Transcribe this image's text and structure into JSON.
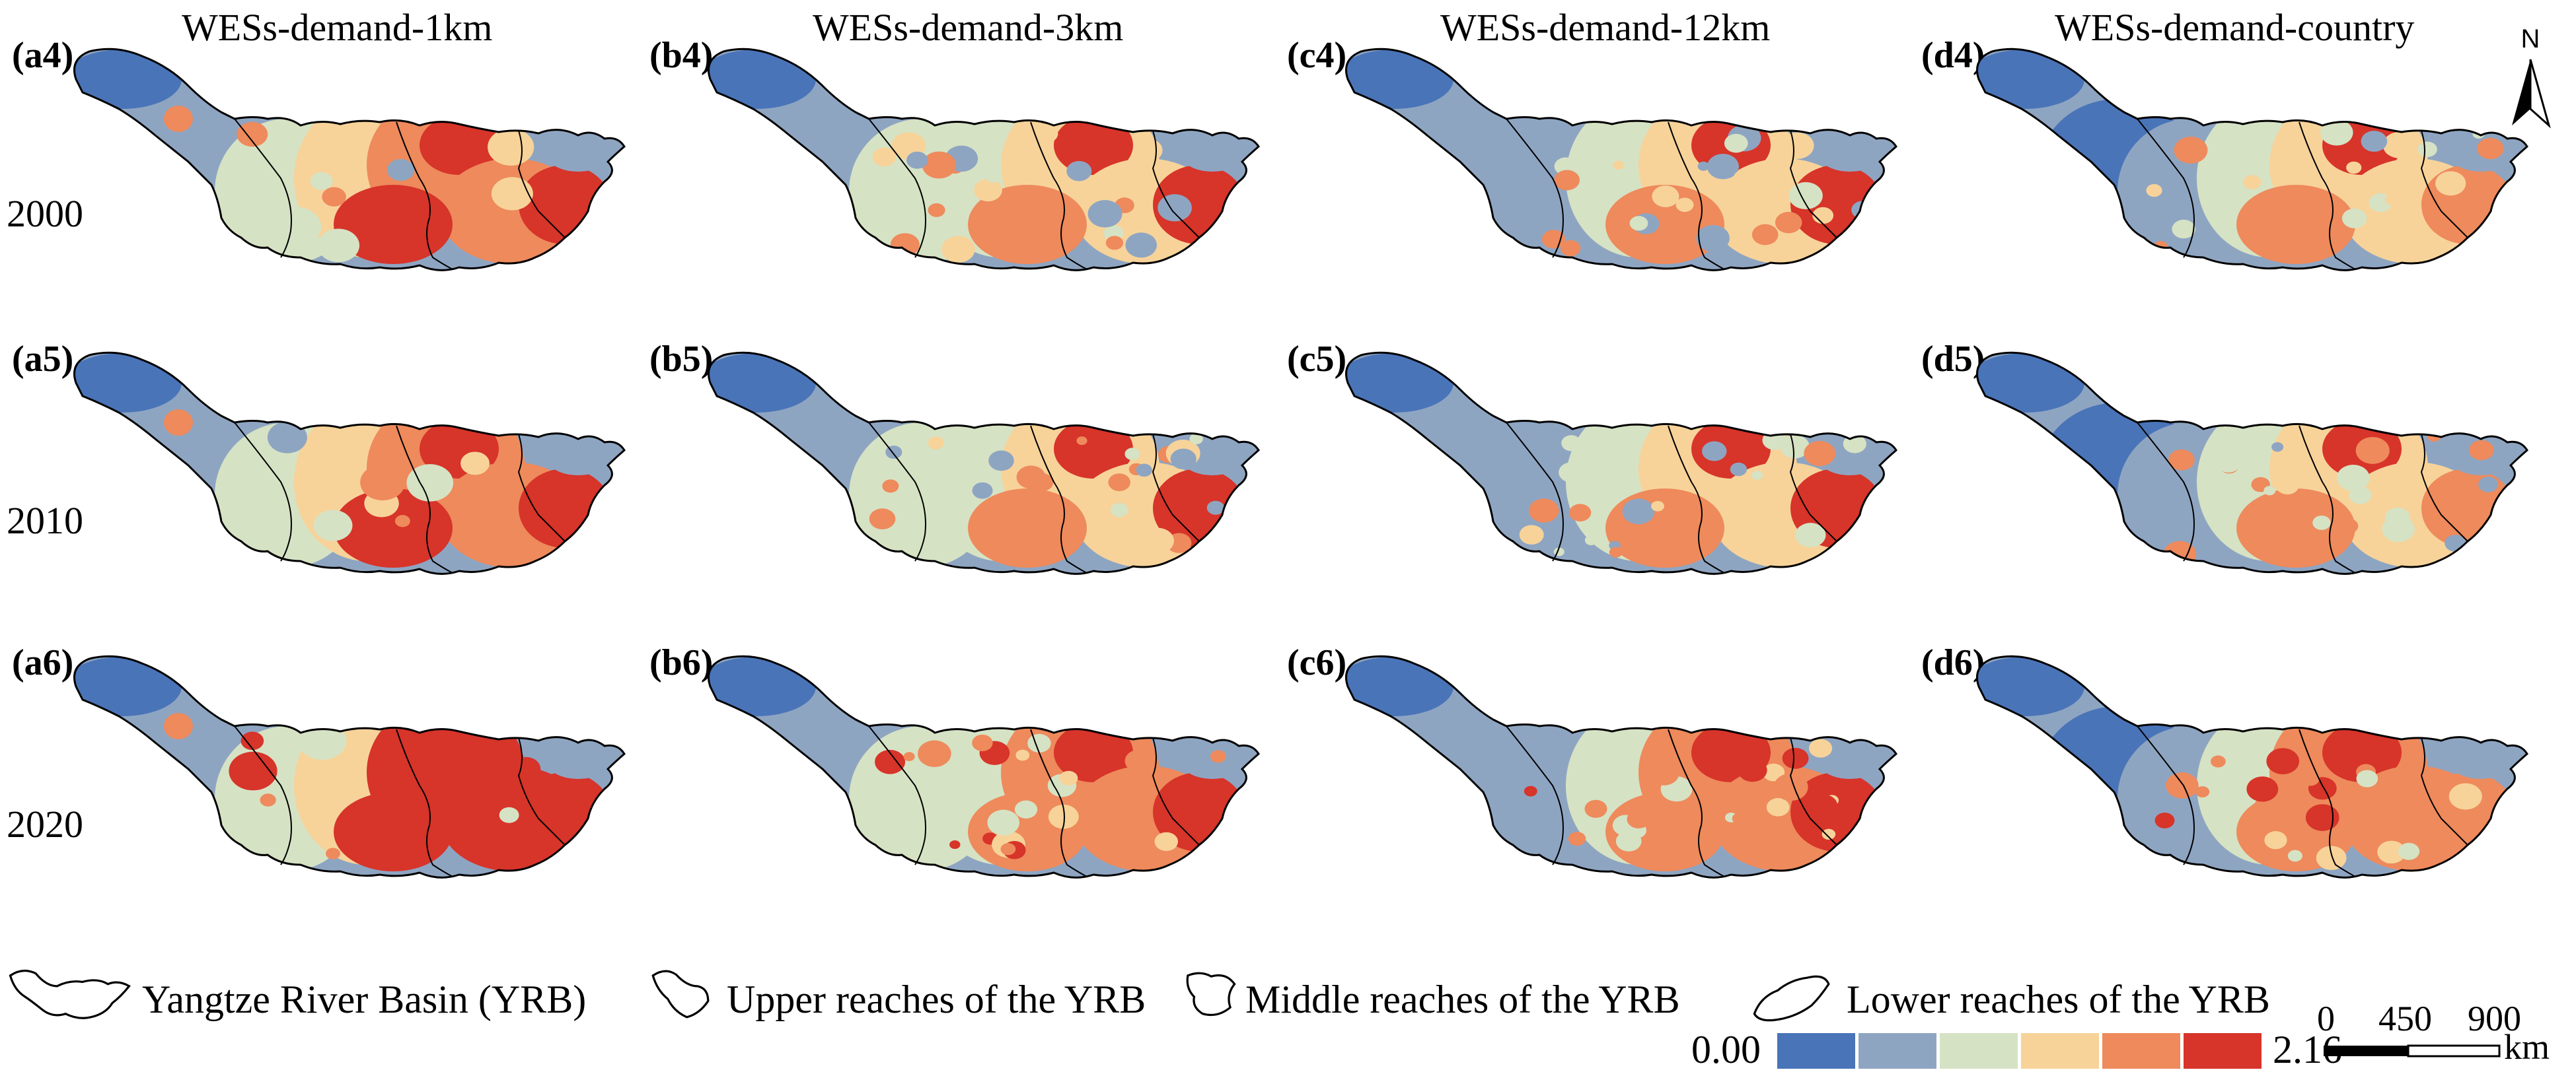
{
  "columns": [
    {
      "title": "WESs-demand-1km"
    },
    {
      "title": "WESs-demand-3km"
    },
    {
      "title": "WESs-demand-12km"
    },
    {
      "title": "WESs-demand-country"
    }
  ],
  "years": [
    "2000",
    "2010",
    "2020"
  ],
  "panels": [
    [
      "(a4)",
      "(b4)",
      "(c4)",
      "(d4)"
    ],
    [
      "(a5)",
      "(b5)",
      "(c5)",
      "(d5)"
    ],
    [
      "(a6)",
      "(b6)",
      "(c6)",
      "(d6)"
    ]
  ],
  "north_label": "N",
  "legend": {
    "boundaries": [
      "Yangtze River Basin (YRB)",
      "Upper reaches of the YRB",
      "Middle reaches of the YRB",
      "Lower reaches of the YRB"
    ],
    "min_label": "0.00",
    "max_label": "2.16",
    "colors": [
      "#4a74b8",
      "#8ea5c2",
      "#d6e2c4",
      "#f7d39a",
      "#ee8a5c",
      "#d7342a"
    ]
  },
  "scale_bar": {
    "labels": [
      "0",
      "450",
      "900"
    ],
    "unit": "km"
  }
}
